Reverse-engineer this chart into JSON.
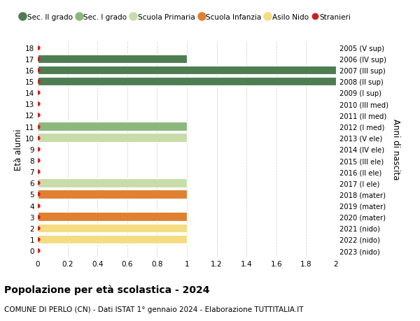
{
  "title": "Popolazione per età scolastica - 2024",
  "subtitle": "COMUNE DI PERLO (CN) - Dati ISTAT 1° gennaio 2024 - Elaborazione TUTTITALIA.IT",
  "ylabel_left": "Età alunni",
  "ylabel_right": "Anni di nascita",
  "xlim": [
    0,
    2.0
  ],
  "xticks": [
    0,
    0.2,
    0.4,
    0.6,
    0.8,
    1.0,
    1.2,
    1.4,
    1.6,
    1.8,
    2.0
  ],
  "ages": [
    18,
    17,
    16,
    15,
    14,
    13,
    12,
    11,
    10,
    9,
    8,
    7,
    6,
    5,
    4,
    3,
    2,
    1,
    0
  ],
  "right_labels": [
    "2005 (V sup)",
    "2006 (IV sup)",
    "2007 (III sup)",
    "2008 (II sup)",
    "2009 (I sup)",
    "2010 (III med)",
    "2011 (II med)",
    "2012 (I med)",
    "2013 (V ele)",
    "2014 (IV ele)",
    "2015 (III ele)",
    "2016 (II ele)",
    "2017 (I ele)",
    "2018 (mater)",
    "2019 (mater)",
    "2020 (mater)",
    "2021 (nido)",
    "2022 (nido)",
    "2023 (nido)"
  ],
  "bars": [
    {
      "age": 18,
      "value": 0,
      "color": "#4e7d52"
    },
    {
      "age": 17,
      "value": 1.0,
      "color": "#4e7d52"
    },
    {
      "age": 16,
      "value": 2.0,
      "color": "#4e7d52"
    },
    {
      "age": 15,
      "value": 2.0,
      "color": "#4e7d52"
    },
    {
      "age": 14,
      "value": 0,
      "color": "#4e7d52"
    },
    {
      "age": 13,
      "value": 0,
      "color": "#8cb87e"
    },
    {
      "age": 12,
      "value": 0,
      "color": "#8cb87e"
    },
    {
      "age": 11,
      "value": 1.0,
      "color": "#8cb87e"
    },
    {
      "age": 10,
      "value": 1.0,
      "color": "#c8dcaa"
    },
    {
      "age": 9,
      "value": 0,
      "color": "#c8dcaa"
    },
    {
      "age": 8,
      "value": 0,
      "color": "#c8dcaa"
    },
    {
      "age": 7,
      "value": 0,
      "color": "#c8dcaa"
    },
    {
      "age": 6,
      "value": 1.0,
      "color": "#c8dcaa"
    },
    {
      "age": 5,
      "value": 1.0,
      "color": "#e08030"
    },
    {
      "age": 4,
      "value": 0,
      "color": "#e08030"
    },
    {
      "age": 3,
      "value": 1.0,
      "color": "#e08030"
    },
    {
      "age": 2,
      "value": 1.0,
      "color": "#f5dc80"
    },
    {
      "age": 1,
      "value": 1.0,
      "color": "#f5dc80"
    },
    {
      "age": 0,
      "value": 0,
      "color": "#f5dc80"
    }
  ],
  "stranieri_dot_color": "#cc2020",
  "legend": [
    {
      "label": "Sec. II grado",
      "color": "#4e7d52",
      "type": "circle"
    },
    {
      "label": "Sec. I grado",
      "color": "#8cb87e",
      "type": "circle"
    },
    {
      "label": "Scuola Primaria",
      "color": "#c8dcaa",
      "type": "circle"
    },
    {
      "label": "Scuola Infanzia",
      "color": "#e08030",
      "type": "circle"
    },
    {
      "label": "Asilo Nido",
      "color": "#f5dc80",
      "type": "circle"
    },
    {
      "label": "Stranieri",
      "color": "#cc2020",
      "type": "dot"
    }
  ],
  "bar_height": 0.78,
  "grid_color": "#cccccc",
  "background_color": "#ffffff"
}
